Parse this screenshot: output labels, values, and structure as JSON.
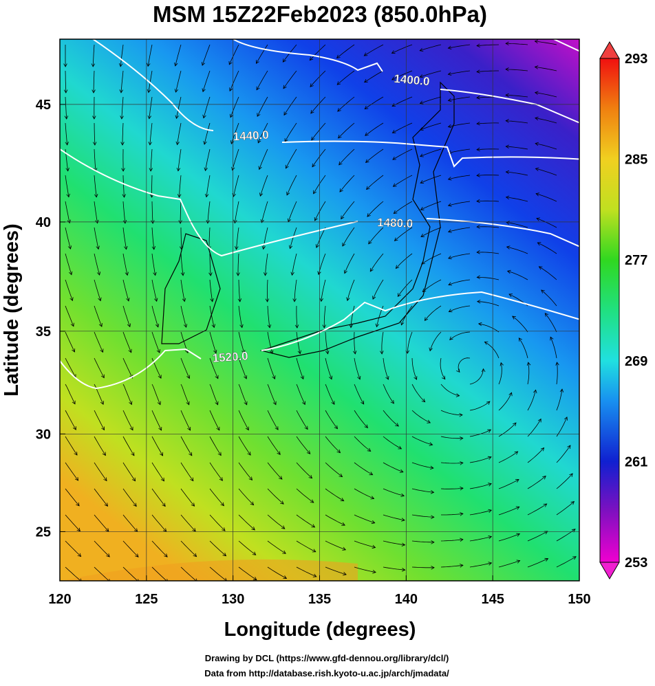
{
  "map": {
    "type": "map",
    "projection": "mercator",
    "title": "MSM 15Z22Feb2023 (850.0hPa)",
    "xlabel": "Longitude (degrees)",
    "ylabel": "Latitude  (degrees)",
    "xlim": [
      120,
      150
    ],
    "ylim": [
      22.4,
      47.6
    ],
    "xticks": [
      120,
      125,
      130,
      135,
      140,
      145,
      150
    ],
    "yticks": [
      25,
      30,
      35,
      40,
      45
    ],
    "grid": true,
    "contours": [
      {
        "value": 1400,
        "label": "1400.0"
      },
      {
        "value": 1440,
        "label": "1440.0"
      },
      {
        "value": 1480,
        "label": "1480.0"
      },
      {
        "value": 1520,
        "label": "1520.0"
      }
    ],
    "colorbar": {
      "clim": [
        253,
        293
      ],
      "ticks": [
        253,
        261,
        269,
        277,
        285,
        293
      ]
    }
  },
  "credits": [
    "Drawing by DCL (https://www.gfd-dennou.org/library/dcl/)",
    "Data from http://database.rish.kyoto-u.ac.jp/arch/jmadata/"
  ]
}
